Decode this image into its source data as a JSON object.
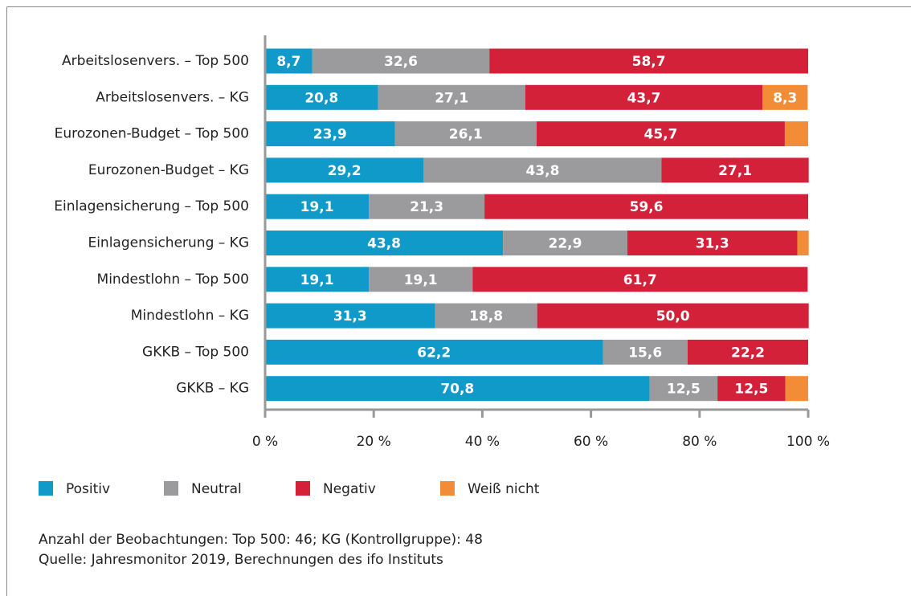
{
  "chart_data": {
    "type": "stacked-bar-horizontal",
    "categories": [
      "Arbeitslosenvers. – Top 500",
      "Arbeitslosenvers. – KG",
      "Eurozonen-Budget – Top 500",
      "Eurozonen-Budget – KG",
      "Einlagensicherung – Top 500",
      "Einlagensicherung – KG",
      "Mindestlohn – Top 500",
      "Mindestlohn – KG",
      "GKKB – Top 500",
      "GKKB – KG"
    ],
    "series": [
      {
        "name": "Positiv",
        "color": "#0f9ac9",
        "values": [
          8.7,
          20.8,
          23.9,
          29.2,
          19.1,
          43.8,
          19.1,
          31.3,
          62.2,
          70.8
        ],
        "value_labels": [
          "8,7",
          "20,8",
          "23,9",
          "29,2",
          "19,1",
          "43,8",
          "19,1",
          "31,3",
          "62,2",
          "70,8"
        ]
      },
      {
        "name": "Neutral",
        "color": "#9b9b9d",
        "values": [
          32.6,
          27.1,
          26.1,
          43.8,
          21.3,
          22.9,
          19.1,
          18.8,
          15.6,
          12.5
        ],
        "value_labels": [
          "32,6",
          "27,1",
          "26,1",
          "43,8",
          "21,3",
          "22,9",
          "19,1",
          "18,8",
          "15,6",
          "12,5"
        ]
      },
      {
        "name": "Negativ",
        "color": "#d4213a",
        "values": [
          58.7,
          43.7,
          45.7,
          27.1,
          59.6,
          31.3,
          61.7,
          50.0,
          22.2,
          12.5
        ],
        "value_labels": [
          "58,7",
          "43,7",
          "45,7",
          "27,1",
          "59,6",
          "31,3",
          "61,7",
          "50,0",
          "22,2",
          "12,5"
        ]
      },
      {
        "name": "Weiß nicht",
        "color": "#f28c36",
        "values": [
          null,
          8.3,
          4.3,
          null,
          null,
          2.1,
          null,
          null,
          null,
          4.2
        ],
        "value_labels": [
          null,
          "8,3",
          null,
          null,
          null,
          null,
          null,
          null,
          null,
          null
        ]
      }
    ],
    "xlim": [
      0,
      100
    ],
    "xticks": [
      {
        "value": 0,
        "label": "0 %"
      },
      {
        "value": 20,
        "label": "20 %"
      },
      {
        "value": 40,
        "label": "40 %"
      },
      {
        "value": 60,
        "label": "60 %"
      },
      {
        "value": 80,
        "label": "80 %"
      },
      {
        "value": 100,
        "label": "100 %"
      }
    ],
    "notes": [
      "Anzahl der Beobachtungen: Top 500: 46; KG (Kontrollgruppe): 48",
      "Quelle: Jahresmonitor 2019, Berechnungen des ifo Instituts"
    ]
  }
}
